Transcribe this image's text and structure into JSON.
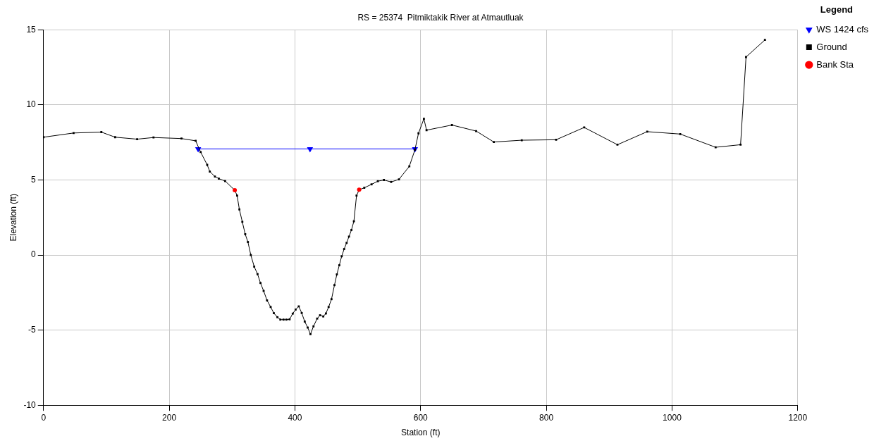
{
  "chart_data": {
    "type": "line",
    "title": "RS = 25374  Pitmiktakik River at Atmautluak",
    "xlabel": "Station (ft)",
    "ylabel": "Elevation (ft)",
    "legend_title": "Legend",
    "xlim": [
      0,
      1200
    ],
    "xticks": [
      0,
      200,
      400,
      600,
      800,
      1000,
      1200
    ],
    "ylim": [
      -10,
      15
    ],
    "yticks": [
      -10,
      -5,
      0,
      5,
      10,
      15
    ],
    "grid": true,
    "legend": "top right",
    "series": [
      {
        "name": "WS 1424 cfs",
        "type": "line",
        "color": "#0000ff",
        "marker": "triangle",
        "x": [
          246,
          424,
          591
        ],
        "values": [
          7.07,
          7.07,
          7.07
        ]
      },
      {
        "name": "Ground",
        "type": "line",
        "color": "#000000",
        "marker": "square",
        "x": [
          0,
          47.8,
          92,
          114,
          149,
          175,
          219.5,
          242,
          250,
          260.4,
          264.6,
          272.7,
          278.9,
          288.9,
          304.3,
          308,
          311.6,
          316.3,
          320.9,
          325.2,
          329.8,
          335.2,
          340.5,
          345.2,
          350.2,
          355.6,
          361.4,
          366.4,
          372.1,
          376.8,
          381.8,
          386.5,
          391.5,
          396.5,
          401.1,
          406.1,
          410.8,
          415.6,
          420.3,
          424.7,
          429.5,
          435.4,
          440,
          445.1,
          449.3,
          453.6,
          458.2,
          462.9,
          466.7,
          470.6,
          474.4,
          478.3,
          482.2,
          486,
          489.9,
          493.8,
          498,
          502.2,
          510.3,
          521.9,
          531.9,
          541.5,
          553.1,
          565.5,
          582,
          590.9,
          596.6,
          605.2,
          609.4,
          649.8,
          688.3,
          716.4,
          760.9,
          815.5,
          860.2,
          913.1,
          960.5,
          1013,
          1069.3,
          1109,
          1117.7,
          1147.8
        ],
        "values": [
          7.85,
          8.13,
          8.19,
          7.85,
          7.72,
          7.83,
          7.76,
          7.61,
          6.86,
          6.01,
          5.56,
          5.23,
          5.09,
          4.93,
          4.32,
          3.96,
          3.04,
          2.21,
          1.39,
          0.87,
          0.0,
          -0.77,
          -1.27,
          -1.86,
          -2.39,
          -3.02,
          -3.46,
          -3.87,
          -4.14,
          -4.3,
          -4.3,
          -4.3,
          -4.28,
          -3.9,
          -3.63,
          -3.42,
          -3.86,
          -4.43,
          -4.83,
          -5.27,
          -4.75,
          -4.23,
          -4.01,
          -4.09,
          -3.89,
          -3.46,
          -2.94,
          -2.0,
          -1.29,
          -0.68,
          -0.08,
          0.4,
          0.81,
          1.23,
          1.67,
          2.25,
          3.96,
          4.35,
          4.48,
          4.71,
          4.92,
          5.0,
          4.87,
          5.04,
          5.91,
          7.01,
          8.11,
          9.08,
          8.32,
          8.66,
          8.26,
          7.53,
          7.65,
          7.68,
          8.5,
          7.35,
          8.22,
          8.06,
          7.18,
          7.35,
          13.19,
          14.33
        ]
      },
      {
        "name": "Bank Sta",
        "type": "scatter",
        "color": "#ff0000",
        "marker": "circle",
        "x": [
          304.3,
          502.2
        ],
        "values": [
          4.32,
          4.35
        ]
      }
    ]
  }
}
